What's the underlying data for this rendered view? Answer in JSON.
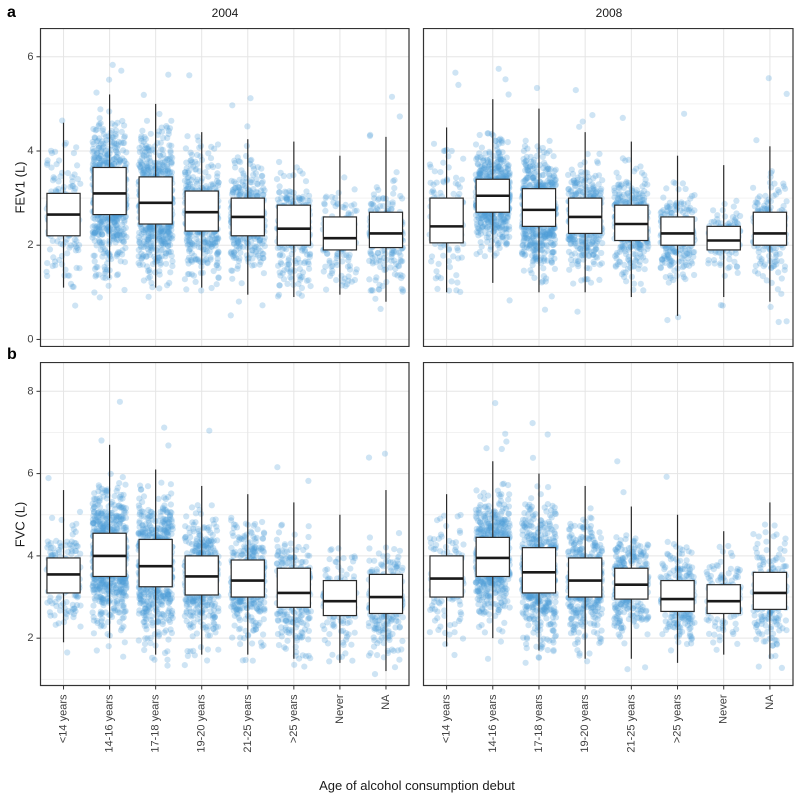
{
  "figure": {
    "tags": [
      "a",
      "b"
    ],
    "facets": [
      "2004",
      "2008"
    ],
    "row_labels": [
      "FEV1 (L)",
      "FVC (L)"
    ],
    "xlabel": "Age of alcohol consumption debut",
    "categories": [
      "<14 years",
      "14-16 years",
      "17-18 years",
      "19-20 years",
      "21-25 years",
      ">25 years",
      "Never",
      "NA"
    ]
  },
  "style": {
    "point_color": "#4f9fd9",
    "point_opacity": 0.28,
    "box_fill": "#ffffff",
    "box_stroke": "#2b2b2b",
    "median_color": "#1a1a1a",
    "grid_major": "#e5e5e5",
    "grid_minor": "#f2f2f2",
    "panel_border": "#333333",
    "text_color": "#333333"
  },
  "chart_data": [
    {
      "type": "boxplot-jitter",
      "row": "FEV1 (L)",
      "facet": "2004",
      "ylim": [
        -0.15,
        6.6
      ],
      "yticks": [
        0,
        2,
        4,
        6
      ],
      "categories": [
        "<14 years",
        "14-16 years",
        "17-18 years",
        "19-20 years",
        "21-25 years",
        ">25 years",
        "Never",
        "NA"
      ],
      "boxes": [
        {
          "category": "<14 years",
          "whisker_low": 1.1,
          "q1": 2.2,
          "median": 2.65,
          "q3": 3.1,
          "whisker_high": 4.6,
          "points_n": 160
        },
        {
          "category": "14-16 years",
          "whisker_low": 1.3,
          "q1": 2.65,
          "median": 3.1,
          "q3": 3.65,
          "whisker_high": 5.2,
          "points_n": 700
        },
        {
          "category": "17-18 years",
          "whisker_low": 1.1,
          "q1": 2.45,
          "median": 2.9,
          "q3": 3.45,
          "whisker_high": 5.0,
          "points_n": 640
        },
        {
          "category": "19-20 years",
          "whisker_low": 1.1,
          "q1": 2.3,
          "median": 2.7,
          "q3": 3.15,
          "whisker_high": 4.4,
          "points_n": 420
        },
        {
          "category": "21-25 years",
          "whisker_low": 0.95,
          "q1": 2.2,
          "median": 2.6,
          "q3": 3.0,
          "whisker_high": 4.25,
          "points_n": 360
        },
        {
          "category": ">25 years",
          "whisker_low": 0.9,
          "q1": 2.0,
          "median": 2.35,
          "q3": 2.85,
          "whisker_high": 4.2,
          "points_n": 260
        },
        {
          "category": "Never",
          "whisker_low": 0.95,
          "q1": 1.9,
          "median": 2.15,
          "q3": 2.6,
          "whisker_high": 3.9,
          "points_n": 140
        },
        {
          "category": "NA",
          "whisker_low": 0.8,
          "q1": 1.95,
          "median": 2.25,
          "q3": 2.7,
          "whisker_high": 4.3,
          "points_n": 230
        }
      ]
    },
    {
      "type": "boxplot-jitter",
      "row": "FEV1 (L)",
      "facet": "2008",
      "ylim": [
        -0.15,
        6.6
      ],
      "yticks": [
        0,
        2,
        4,
        6
      ],
      "categories": [
        "<14 years",
        "14-16 years",
        "17-18 years",
        "19-20 years",
        "21-25 years",
        ">25 years",
        "Never",
        "NA"
      ],
      "boxes": [
        {
          "category": "<14 years",
          "whisker_low": 1.0,
          "q1": 2.05,
          "median": 2.4,
          "q3": 3.0,
          "whisker_high": 4.5,
          "points_n": 130
        },
        {
          "category": "14-16 years",
          "whisker_low": 1.2,
          "q1": 2.7,
          "median": 3.05,
          "q3": 3.4,
          "whisker_high": 5.1,
          "points_n": 620
        },
        {
          "category": "17-18 years",
          "whisker_low": 1.0,
          "q1": 2.4,
          "median": 2.75,
          "q3": 3.2,
          "whisker_high": 4.9,
          "points_n": 560
        },
        {
          "category": "19-20 years",
          "whisker_low": 1.0,
          "q1": 2.25,
          "median": 2.6,
          "q3": 3.0,
          "whisker_high": 4.4,
          "points_n": 400
        },
        {
          "category": "21-25 years",
          "whisker_low": 0.9,
          "q1": 2.1,
          "median": 2.45,
          "q3": 2.85,
          "whisker_high": 4.2,
          "points_n": 340
        },
        {
          "category": ">25 years",
          "whisker_low": 0.5,
          "q1": 2.0,
          "median": 2.25,
          "q3": 2.6,
          "whisker_high": 3.9,
          "points_n": 260
        },
        {
          "category": "Never",
          "whisker_low": 0.9,
          "q1": 1.9,
          "median": 2.1,
          "q3": 2.4,
          "whisker_high": 3.7,
          "points_n": 120
        },
        {
          "category": "NA",
          "whisker_low": 0.8,
          "q1": 2.0,
          "median": 2.25,
          "q3": 2.7,
          "whisker_high": 4.1,
          "points_n": 210
        }
      ]
    },
    {
      "type": "boxplot-jitter",
      "row": "FVC (L)",
      "facet": "2004",
      "ylim": [
        0.85,
        8.7
      ],
      "yticks": [
        2,
        4,
        6,
        8
      ],
      "categories": [
        "<14 years",
        "14-16 years",
        "17-18 years",
        "19-20 years",
        "21-25 years",
        ">25 years",
        "Never",
        "NA"
      ],
      "boxes": [
        {
          "category": "<14 years",
          "whisker_low": 1.9,
          "q1": 3.1,
          "median": 3.55,
          "q3": 3.95,
          "whisker_high": 5.6,
          "points_n": 160
        },
        {
          "category": "14-16 years",
          "whisker_low": 2.0,
          "q1": 3.5,
          "median": 4.0,
          "q3": 4.55,
          "whisker_high": 6.7,
          "points_n": 700
        },
        {
          "category": "17-18 years",
          "whisker_low": 1.6,
          "q1": 3.25,
          "median": 3.75,
          "q3": 4.4,
          "whisker_high": 6.1,
          "points_n": 640
        },
        {
          "category": "19-20 years",
          "whisker_low": 1.6,
          "q1": 3.05,
          "median": 3.5,
          "q3": 4.0,
          "whisker_high": 5.7,
          "points_n": 420
        },
        {
          "category": "21-25 years",
          "whisker_low": 1.6,
          "q1": 3.0,
          "median": 3.4,
          "q3": 3.9,
          "whisker_high": 5.5,
          "points_n": 360
        },
        {
          "category": ">25 years",
          "whisker_low": 1.5,
          "q1": 2.75,
          "median": 3.1,
          "q3": 3.7,
          "whisker_high": 5.3,
          "points_n": 260
        },
        {
          "category": "Never",
          "whisker_low": 1.4,
          "q1": 2.55,
          "median": 2.9,
          "q3": 3.4,
          "whisker_high": 5.0,
          "points_n": 140
        },
        {
          "category": "NA",
          "whisker_low": 1.2,
          "q1": 2.6,
          "median": 3.0,
          "q3": 3.55,
          "whisker_high": 5.6,
          "points_n": 230
        }
      ]
    },
    {
      "type": "boxplot-jitter",
      "row": "FVC (L)",
      "facet": "2008",
      "ylim": [
        0.85,
        8.7
      ],
      "yticks": [
        2,
        4,
        6,
        8
      ],
      "categories": [
        "<14 years",
        "14-16 years",
        "17-18 years",
        "19-20 years",
        "21-25 years",
        ">25 years",
        "Never",
        "NA"
      ],
      "boxes": [
        {
          "category": "<14 years",
          "whisker_low": 1.8,
          "q1": 3.0,
          "median": 3.45,
          "q3": 4.0,
          "whisker_high": 5.5,
          "points_n": 130
        },
        {
          "category": "14-16 years",
          "whisker_low": 2.0,
          "q1": 3.5,
          "median": 3.95,
          "q3": 4.45,
          "whisker_high": 6.3,
          "points_n": 620
        },
        {
          "category": "17-18 years",
          "whisker_low": 1.7,
          "q1": 3.1,
          "median": 3.6,
          "q3": 4.2,
          "whisker_high": 6.0,
          "points_n": 560
        },
        {
          "category": "19-20 years",
          "whisker_low": 1.5,
          "q1": 3.0,
          "median": 3.4,
          "q3": 3.95,
          "whisker_high": 5.7,
          "points_n": 400
        },
        {
          "category": "21-25 years",
          "whisker_low": 1.5,
          "q1": 2.95,
          "median": 3.3,
          "q3": 3.7,
          "whisker_high": 5.2,
          "points_n": 340
        },
        {
          "category": ">25 years",
          "whisker_low": 1.4,
          "q1": 2.65,
          "median": 2.95,
          "q3": 3.4,
          "whisker_high": 5.0,
          "points_n": 260
        },
        {
          "category": "Never",
          "whisker_low": 1.6,
          "q1": 2.6,
          "median": 2.9,
          "q3": 3.3,
          "whisker_high": 4.6,
          "points_n": 120
        },
        {
          "category": "NA",
          "whisker_low": 1.5,
          "q1": 2.7,
          "median": 3.1,
          "q3": 3.6,
          "whisker_high": 5.3,
          "points_n": 210
        }
      ]
    }
  ]
}
